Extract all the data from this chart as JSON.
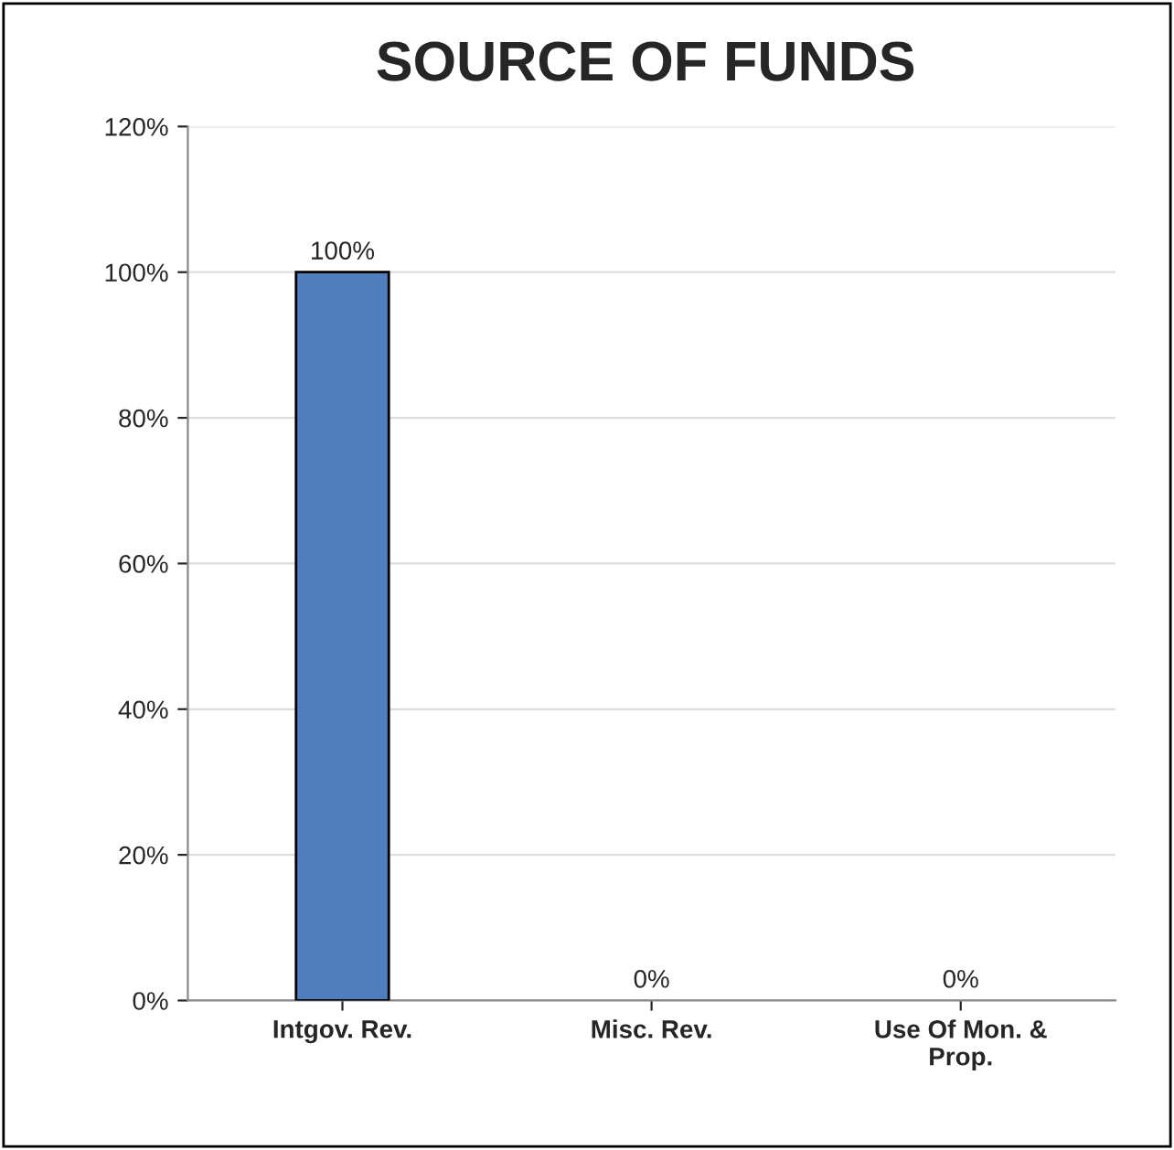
{
  "chart_data": {
    "type": "bar",
    "title": "SOURCE OF FUNDS",
    "categories": [
      "Intgov. Rev.",
      "Misc. Rev.",
      "Use Of Mon. &\nProp."
    ],
    "values": [
      100,
      0,
      0
    ],
    "color": "#4f7fbf",
    "value_labels": [
      "100%",
      "0%",
      "0%"
    ],
    "ylim": [
      0,
      120
    ],
    "yticks": [
      {
        "value": 0,
        "label": "0%"
      },
      {
        "value": 20,
        "label": "20%"
      },
      {
        "value": 40,
        "label": "40%"
      },
      {
        "value": 60,
        "label": "60%"
      },
      {
        "value": 80,
        "label": "80%"
      },
      {
        "value": 100,
        "label": "100%"
      },
      {
        "value": 120,
        "label": "120%"
      }
    ],
    "grid": "y"
  }
}
